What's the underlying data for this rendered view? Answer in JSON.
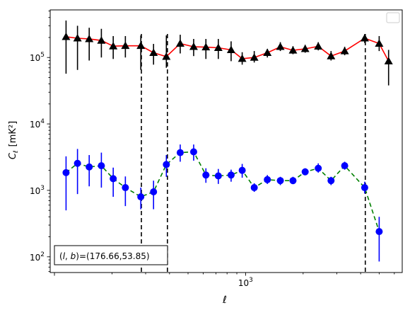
{
  "chart_data": {
    "type": "scatter",
    "title": "",
    "xlabel": "ℓ",
    "ylabel_main": "C",
    "ylabel_sub": "ℓ",
    "ylabel_unit": "[mK²]",
    "xscale": "log",
    "yscale": "log",
    "xlim": [
      95,
      6600
    ],
    "ylim": [
      58,
      520000
    ],
    "grid": false,
    "legend": "top-right, empty",
    "x_tick_labels": [
      {
        "value": 1000,
        "base": "10",
        "exp": "3"
      }
    ],
    "y_tick_labels": [
      {
        "value": 100,
        "base": "10",
        "exp": "2"
      },
      {
        "value": 1000,
        "base": "10",
        "exp": "3"
      },
      {
        "value": 10000,
        "base": "10",
        "exp": "4"
      },
      {
        "value": 100000,
        "base": "10",
        "exp": "5"
      }
    ],
    "annotation": "(l, b)=(176.66,53.85)",
    "annotation_parts": {
      "prefix": "(",
      "l": "l",
      "sep": ", ",
      "b": "b",
      "suffix": ")=(176.66,53.85)"
    },
    "vertical_lines": [
      285,
      390,
      4230
    ],
    "series": [
      {
        "marker": "triangle",
        "marker_color": "#000000",
        "line_color": "#ff0000",
        "line_style": "solid",
        "points": [
          {
            "x": 115,
            "y": 205000,
            "lo": 57000,
            "hi": 360000
          },
          {
            "x": 132,
            "y": 195000,
            "lo": 65000,
            "hi": 300000
          },
          {
            "x": 152,
            "y": 190000,
            "lo": 90000,
            "hi": 280000
          },
          {
            "x": 176,
            "y": 180000,
            "lo": 100000,
            "hi": 270000
          },
          {
            "x": 203,
            "y": 148000,
            "lo": 95000,
            "hi": 210000
          },
          {
            "x": 235,
            "y": 150000,
            "lo": 100000,
            "hi": 210000
          },
          {
            "x": 283,
            "y": 150000,
            "lo": 65000,
            "hi": 215000
          },
          {
            "x": 330,
            "y": 118000,
            "lo": 78000,
            "hi": 160000
          },
          {
            "x": 385,
            "y": 103000,
            "lo": 70000,
            "hi": 215000
          },
          {
            "x": 455,
            "y": 162000,
            "lo": 115000,
            "hi": 220000
          },
          {
            "x": 535,
            "y": 145000,
            "lo": 105000,
            "hi": 190000
          },
          {
            "x": 620,
            "y": 143000,
            "lo": 95000,
            "hi": 190000
          },
          {
            "x": 720,
            "y": 140000,
            "lo": 95000,
            "hi": 190000
          },
          {
            "x": 840,
            "y": 130000,
            "lo": 88000,
            "hi": 175000
          },
          {
            "x": 960,
            "y": 96000,
            "lo": 78000,
            "hi": 120000
          },
          {
            "x": 1110,
            "y": 100000,
            "lo": 84000,
            "hi": 125000
          },
          {
            "x": 1300,
            "y": 118000,
            "lo": 100000,
            "hi": 135000
          },
          {
            "x": 1520,
            "y": 145000,
            "lo": 125000,
            "hi": 170000
          },
          {
            "x": 1770,
            "y": 128000,
            "lo": 112000,
            "hi": 148000
          },
          {
            "x": 2050,
            "y": 135000,
            "lo": 118000,
            "hi": 155000
          },
          {
            "x": 2400,
            "y": 147000,
            "lo": 128000,
            "hi": 170000
          },
          {
            "x": 2800,
            "y": 105000,
            "lo": 90000,
            "hi": 125000
          },
          {
            "x": 3300,
            "y": 125000,
            "lo": 108000,
            "hi": 145000
          },
          {
            "x": 4200,
            "y": 195000,
            "lo": 165000,
            "hi": 225000
          },
          {
            "x": 5000,
            "y": 162000,
            "lo": 125000,
            "hi": 210000
          },
          {
            "x": 5600,
            "y": 88000,
            "lo": 38000,
            "hi": 130000
          }
        ]
      },
      {
        "marker": "circle",
        "marker_color": "#0000ff",
        "line_color": "#008000",
        "line_style": "dashed",
        "points": [
          {
            "x": 115,
            "y": 1850,
            "lo": 500,
            "hi": 3250
          },
          {
            "x": 132,
            "y": 2550,
            "lo": 880,
            "hi": 4200
          },
          {
            "x": 152,
            "y": 2250,
            "lo": 1150,
            "hi": 3400
          },
          {
            "x": 176,
            "y": 2350,
            "lo": 1100,
            "hi": 3700
          },
          {
            "x": 203,
            "y": 1500,
            "lo": 800,
            "hi": 2200
          },
          {
            "x": 235,
            "y": 1100,
            "lo": 580,
            "hi": 1620
          },
          {
            "x": 283,
            "y": 800,
            "lo": 520,
            "hi": 1100
          },
          {
            "x": 330,
            "y": 950,
            "lo": 520,
            "hi": 1400
          },
          {
            "x": 385,
            "y": 2450,
            "lo": 1600,
            "hi": 3400
          },
          {
            "x": 455,
            "y": 3700,
            "lo": 2700,
            "hi": 4900
          },
          {
            "x": 535,
            "y": 3800,
            "lo": 2800,
            "hi": 4900
          },
          {
            "x": 620,
            "y": 1700,
            "lo": 1300,
            "hi": 2150
          },
          {
            "x": 720,
            "y": 1650,
            "lo": 1250,
            "hi": 2100
          },
          {
            "x": 840,
            "y": 1700,
            "lo": 1350,
            "hi": 2050
          },
          {
            "x": 960,
            "y": 2000,
            "lo": 1550,
            "hi": 2500
          },
          {
            "x": 1110,
            "y": 1100,
            "lo": 950,
            "hi": 1280
          },
          {
            "x": 1300,
            "y": 1450,
            "lo": 1250,
            "hi": 1700
          },
          {
            "x": 1520,
            "y": 1400,
            "lo": 1200,
            "hi": 1600
          },
          {
            "x": 1770,
            "y": 1400,
            "lo": 1250,
            "hi": 1600
          },
          {
            "x": 2050,
            "y": 1900,
            "lo": 1700,
            "hi": 2150
          },
          {
            "x": 2400,
            "y": 2150,
            "lo": 1850,
            "hi": 2550
          },
          {
            "x": 2800,
            "y": 1400,
            "lo": 1200,
            "hi": 1600
          },
          {
            "x": 3300,
            "y": 2350,
            "lo": 2050,
            "hi": 2700
          },
          {
            "x": 4200,
            "y": 1100,
            "lo": 900,
            "hi": 1350
          },
          {
            "x": 5000,
            "y": 240,
            "lo": 85,
            "hi": 400
          }
        ]
      }
    ]
  }
}
